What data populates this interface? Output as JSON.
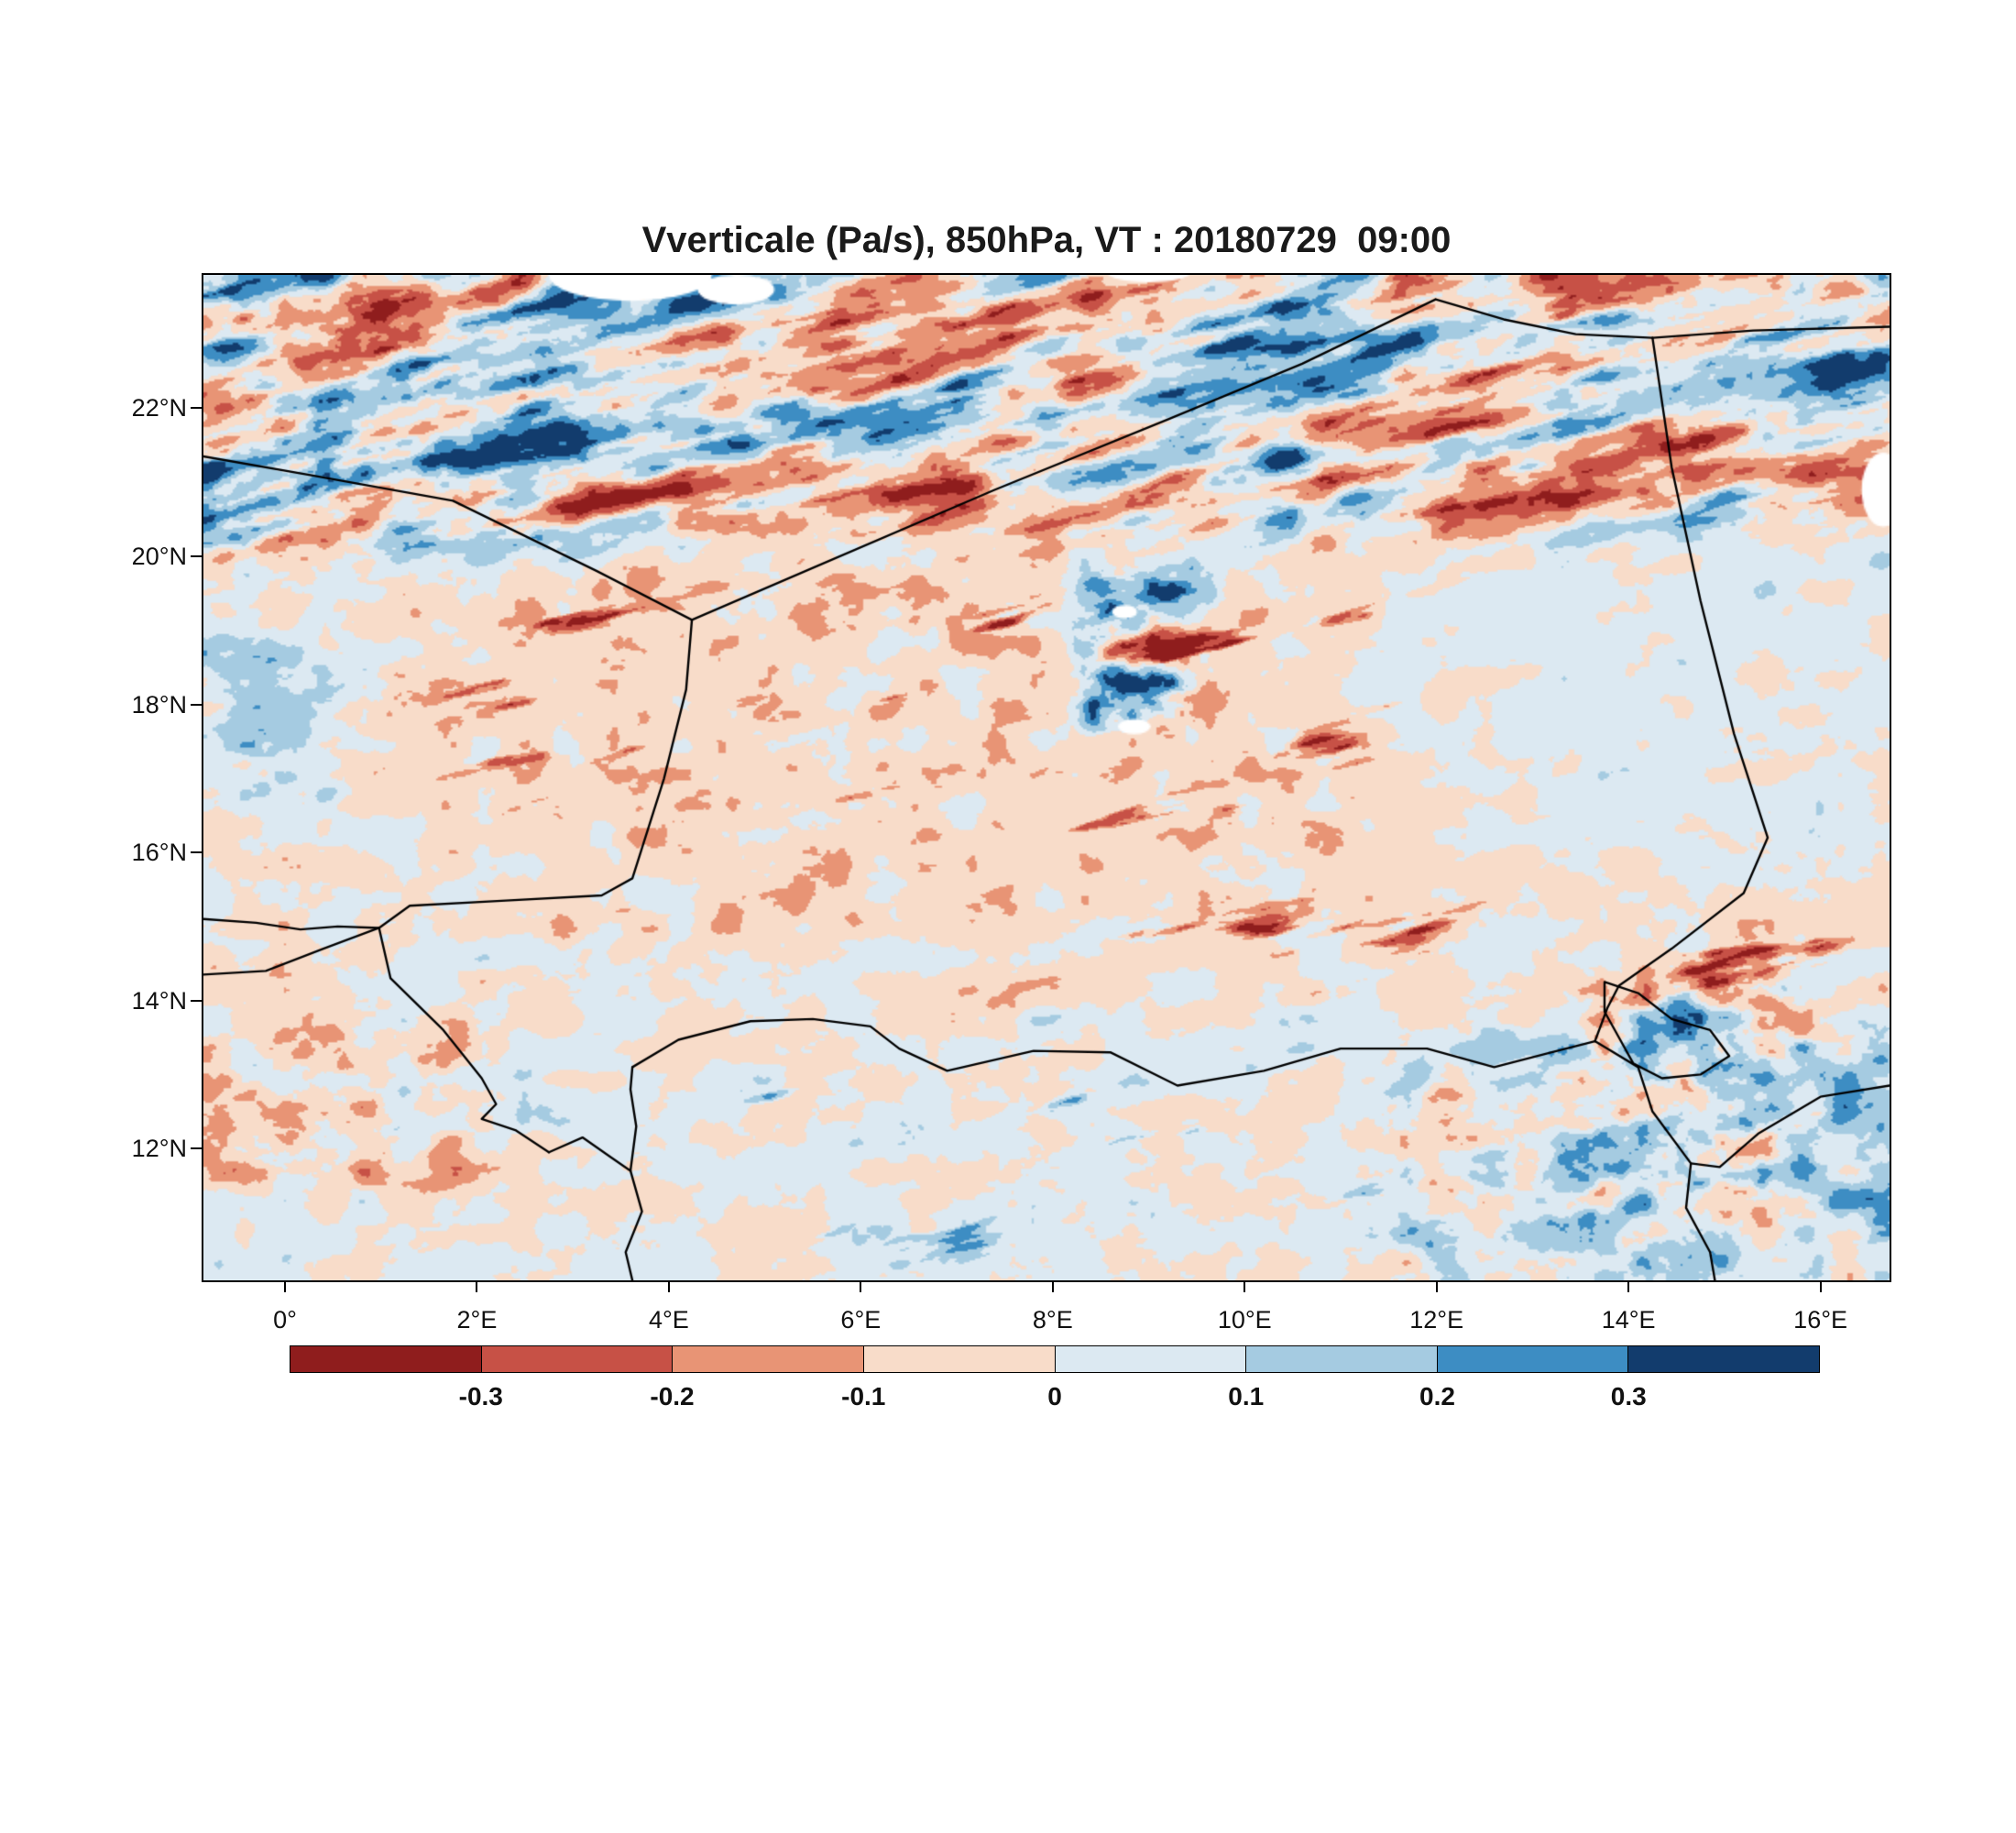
{
  "title": "Vverticale (Pa/s), 850hPa, VT : 20180729  09:00",
  "chart_data": {
    "type": "heatmap",
    "title": "Vverticale (Pa/s), 850hPa, VT : 20180729  09:00",
    "variable": "Vverticale",
    "units": "Pa/s",
    "level": "850hPa",
    "valid_time": "20180729 09:00",
    "xlabel": "",
    "ylabel": "",
    "lon_range": [
      -0.85,
      16.72
    ],
    "lat_range": [
      10.22,
      23.8
    ],
    "grid": false,
    "legend_position": "bottom",
    "x_ticks": [
      {
        "lon": 0,
        "label": "0°"
      },
      {
        "lon": 2,
        "label": "2°E"
      },
      {
        "lon": 4,
        "label": "4°E"
      },
      {
        "lon": 6,
        "label": "6°E"
      },
      {
        "lon": 8,
        "label": "8°E"
      },
      {
        "lon": 10,
        "label": "10°E"
      },
      {
        "lon": 12,
        "label": "12°E"
      },
      {
        "lon": 14,
        "label": "14°E"
      },
      {
        "lon": 16,
        "label": "16°E"
      }
    ],
    "y_ticks": [
      {
        "lat": 12,
        "label": "12°N"
      },
      {
        "lat": 14,
        "label": "14°N"
      },
      {
        "lat": 16,
        "label": "16°N"
      },
      {
        "lat": 18,
        "label": "18°N"
      },
      {
        "lat": 20,
        "label": "20°N"
      },
      {
        "lat": 22,
        "label": "22°N"
      }
    ],
    "colorbar": {
      "levels": [
        -0.3,
        -0.2,
        -0.1,
        0,
        0.1,
        0.2,
        0.3
      ],
      "tick_labels": [
        "-0.3",
        "-0.2",
        "-0.1",
        "0",
        "0.1",
        "0.2",
        "0.3"
      ],
      "colors": [
        "#8f1d1d",
        "#c75146",
        "#e89475",
        "#f8dcc9",
        "#dce9f2",
        "#a5cbe1",
        "#3d8dc3",
        "#123c6d"
      ]
    },
    "field_synthesis": {
      "summary": [
        "strong alternating dark-red / navy diagonal streaks across the north (lat > 20N, Hoggar-Tassili zone)",
        "very dark navy mass in the northwest corner with deep red filament bands",
        "pale peach (weak subsidence) dominates the central band 14-20N with scattered salmon and dark-red filaments",
        "intense mixed navy/dark-red convective cluster near 9E,18-20N (Air massif)",
        "pale blue east sector 11-16E,16-20N",
        "bluer mixed field south of 14N, strongest blues toward Lake Chad and the southeast corner",
        "strong red patches along the southwest edge near 0-2E,11-14N"
      ],
      "seed": 7,
      "streak_dir_deg": 17,
      "base": {
        "bias": -0.015,
        "amp": 0.15,
        "streak": 0.05
      },
      "regions": [
        {
          "name": "north-strong",
          "box": [
            -2,
            19.8,
            17.5,
            24.6
          ],
          "edge": 1.0,
          "bias": 0.0,
          "amp": 0.22,
          "streak": 0.55
        },
        {
          "name": "northwest-navy",
          "box": [
            -2,
            19.6,
            3.6,
            24.6
          ],
          "edge": 1.0,
          "bias": 0.09,
          "amp": 0.3,
          "streak": 0.55
        },
        {
          "name": "west-edge-ascent",
          "box": [
            -2,
            16.2,
            0.8,
            19.4
          ],
          "edge": 0.9,
          "bias": 0.1,
          "amp": 0.22,
          "streak": 0.1
        },
        {
          "name": "central-peach",
          "box": [
            1.5,
            14.3,
            13.5,
            20.2
          ],
          "edge": 1.0,
          "bias": -0.05,
          "amp": 0.15,
          "streak": 0.05
        },
        {
          "name": "east-pale",
          "box": [
            10.5,
            15.4,
            17.6,
            20.6
          ],
          "edge": 1.2,
          "bias": 0.02,
          "amp": 0.11,
          "streak": 0.05
        },
        {
          "name": "air-massif-cluster",
          "box": [
            8.0,
            17.3,
            9.9,
            20.1
          ],
          "edge": 0.6,
          "bias": 0.02,
          "amp": 0.5,
          "streak": 0.25
        },
        {
          "name": "south-mixed",
          "box": [
            -2,
            9.5,
            17.6,
            14.3
          ],
          "edge": 1.0,
          "bias": 0.015,
          "amp": 0.14,
          "streak": 0.05
        },
        {
          "name": "southwest-red",
          "box": [
            -2,
            11.0,
            2.5,
            14.2
          ],
          "edge": 0.8,
          "bias": -0.04,
          "amp": 0.26,
          "streak": 0.08
        },
        {
          "name": "southeast-blue",
          "box": [
            11.0,
            9.5,
            17.6,
            14.0
          ],
          "edge": 1.0,
          "bias": 0.06,
          "amp": 0.28,
          "streak": 0.12
        },
        {
          "name": "lakechad-chaos",
          "box": [
            13.2,
            11.0,
            16.2,
            14.6
          ],
          "edge": 0.6,
          "bias": 0.03,
          "amp": 0.42,
          "streak": 0.15
        }
      ],
      "ridges": [
        {
          "name": "central-darkred-filaments",
          "box": [
            1.0,
            13.8,
            13.0,
            20.0
          ],
          "edge": 1.0,
          "th": 0.36,
          "k": -1.1,
          "seed": 41
        },
        {
          "name": "south-navy-filaments",
          "box": [
            4.0,
            10.0,
            12.5,
            13.6
          ],
          "edge": 0.8,
          "th": 0.4,
          "k": 0.9,
          "seed": 67
        },
        {
          "name": "east-14N-darkred-band",
          "box": [
            10.0,
            13.8,
            16.6,
            15.6
          ],
          "edge": 0.7,
          "th": 0.34,
          "k": -1.2,
          "seed": 83
        }
      ]
    },
    "white_patches": [
      {
        "lon": 3.6,
        "lat": 23.8,
        "rx": 0.85,
        "ry": 0.35
      },
      {
        "lon": 4.7,
        "lat": 23.6,
        "rx": 0.4,
        "ry": 0.2
      },
      {
        "lon": 9.0,
        "lat": 23.85,
        "rx": 0.45,
        "ry": 0.15
      },
      {
        "lon": 8.75,
        "lat": 19.25,
        "rx": 0.13,
        "ry": 0.09
      },
      {
        "lon": 8.85,
        "lat": 17.7,
        "rx": 0.17,
        "ry": 0.1
      },
      {
        "lon": 16.65,
        "lat": 20.9,
        "rx": 0.22,
        "ry": 0.5
      }
    ],
    "borders": [
      {
        "name": "algeria-niger",
        "points": [
          [
            4.24,
            19.14
          ],
          [
            5.6,
            19.9
          ],
          [
            7.4,
            20.9
          ],
          [
            9.2,
            21.85
          ],
          [
            10.6,
            22.6
          ],
          [
            11.99,
            23.47
          ]
        ]
      },
      {
        "name": "niger-libya",
        "points": [
          [
            11.99,
            23.47
          ],
          [
            12.7,
            23.2
          ],
          [
            13.45,
            23.0
          ],
          [
            14.25,
            22.95
          ]
        ]
      },
      {
        "name": "libya-chad",
        "points": [
          [
            14.25,
            22.95
          ],
          [
            15.3,
            23.05
          ],
          [
            16.72,
            23.1
          ]
        ]
      },
      {
        "name": "niger-chad",
        "points": [
          [
            14.25,
            22.95
          ],
          [
            14.45,
            21.2
          ],
          [
            14.75,
            19.4
          ],
          [
            15.1,
            17.6
          ],
          [
            15.45,
            16.2
          ],
          [
            15.2,
            15.45
          ],
          [
            14.45,
            14.7
          ],
          [
            13.9,
            14.2
          ],
          [
            13.78,
            13.9
          ],
          [
            13.65,
            13.45
          ]
        ]
      },
      {
        "name": "algeria-mali",
        "points": [
          [
            4.24,
            19.14
          ],
          [
            3.25,
            19.8
          ],
          [
            1.75,
            20.75
          ],
          [
            0.25,
            21.1
          ],
          [
            -0.85,
            21.35
          ]
        ]
      },
      {
        "name": "niger-mali",
        "points": [
          [
            4.24,
            19.14
          ],
          [
            4.18,
            18.2
          ],
          [
            3.95,
            17.0
          ],
          [
            3.62,
            15.65
          ],
          [
            3.3,
            15.42
          ],
          [
            2.3,
            15.35
          ],
          [
            1.3,
            15.28
          ],
          [
            0.98,
            14.98
          ],
          [
            0.55,
            15.0
          ],
          [
            0.16,
            14.96
          ],
          [
            -0.3,
            15.05
          ],
          [
            -0.85,
            15.1
          ]
        ]
      },
      {
        "name": "mali-burkina",
        "points": [
          [
            0.98,
            14.98
          ],
          [
            0.4,
            14.7
          ],
          [
            -0.2,
            14.4
          ],
          [
            -0.85,
            14.35
          ]
        ]
      },
      {
        "name": "niger-burkina",
        "points": [
          [
            0.98,
            14.98
          ],
          [
            1.1,
            14.3
          ],
          [
            1.65,
            13.6
          ],
          [
            2.05,
            12.95
          ],
          [
            2.2,
            12.6
          ],
          [
            2.05,
            12.4
          ],
          [
            2.4,
            12.25
          ],
          [
            2.75,
            11.95
          ]
        ]
      },
      {
        "name": "niger-benin-river",
        "points": [
          [
            2.75,
            11.95
          ],
          [
            3.1,
            12.15
          ],
          [
            3.4,
            11.88
          ],
          [
            3.6,
            11.7
          ]
        ]
      },
      {
        "name": "niger-nigeria-west",
        "points": [
          [
            3.6,
            11.7
          ],
          [
            3.66,
            12.3
          ],
          [
            3.6,
            12.8
          ],
          [
            3.62,
            13.1
          ]
        ]
      },
      {
        "name": "benin-nigeria-south",
        "points": [
          [
            3.6,
            11.7
          ],
          [
            3.72,
            11.15
          ],
          [
            3.55,
            10.6
          ],
          [
            3.62,
            10.22
          ]
        ]
      },
      {
        "name": "niger-nigeria",
        "points": [
          [
            3.62,
            13.1
          ],
          [
            4.1,
            13.47
          ],
          [
            4.85,
            13.72
          ],
          [
            5.5,
            13.75
          ],
          [
            6.1,
            13.65
          ],
          [
            6.4,
            13.35
          ],
          [
            6.9,
            13.05
          ],
          [
            7.8,
            13.32
          ],
          [
            8.6,
            13.3
          ],
          [
            9.3,
            12.85
          ],
          [
            10.2,
            13.05
          ],
          [
            11.0,
            13.35
          ],
          [
            11.9,
            13.35
          ],
          [
            12.6,
            13.1
          ],
          [
            13.2,
            13.3
          ],
          [
            13.65,
            13.45
          ]
        ]
      },
      {
        "name": "chad-nigeria-cameroon",
        "points": [
          [
            13.65,
            13.45
          ],
          [
            14.1,
            13.1
          ],
          [
            14.25,
            12.5
          ],
          [
            14.65,
            11.8
          ],
          [
            14.6,
            11.2
          ],
          [
            14.85,
            10.6
          ],
          [
            14.9,
            10.22
          ]
        ]
      },
      {
        "name": "lake-chad-outline",
        "points": [
          [
            13.75,
            14.25
          ],
          [
            14.1,
            14.1
          ],
          [
            14.45,
            13.75
          ],
          [
            14.85,
            13.6
          ],
          [
            15.05,
            13.25
          ],
          [
            14.75,
            13.0
          ],
          [
            14.35,
            12.95
          ],
          [
            14.05,
            13.15
          ],
          [
            13.9,
            13.5
          ],
          [
            13.75,
            13.85
          ],
          [
            13.75,
            14.25
          ]
        ]
      },
      {
        "name": "chari-chad-cameroon",
        "points": [
          [
            16.72,
            12.85
          ],
          [
            16.0,
            12.7
          ],
          [
            15.35,
            12.2
          ],
          [
            14.95,
            11.75
          ],
          [
            14.65,
            11.8
          ]
        ]
      }
    ]
  }
}
